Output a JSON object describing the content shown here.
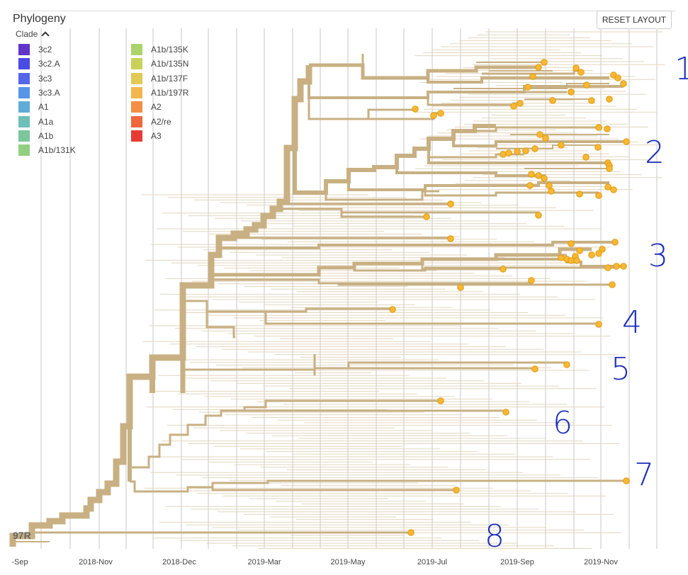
{
  "panel": {
    "title": "Phylogeny",
    "reset_label": "RESET LAYOUT"
  },
  "legend": {
    "toggle_label": "Clade",
    "items": [
      {
        "label": "3c2",
        "color": "#5a2ac8"
      },
      {
        "label": "3c2.A",
        "color": "#4141e3"
      },
      {
        "label": "3c3",
        "color": "#4a5ee8"
      },
      {
        "label": "3c3.A",
        "color": "#4f8fe6"
      },
      {
        "label": "A1",
        "color": "#57a9d4"
      },
      {
        "label": "A1a",
        "color": "#66bcb4"
      },
      {
        "label": "A1b",
        "color": "#77c497"
      },
      {
        "label": "A1b/131K",
        "color": "#8ccd7b"
      },
      {
        "label": "A1b/135K",
        "color": "#a6d264"
      },
      {
        "label": "A1b/135N",
        "color": "#c6d052"
      },
      {
        "label": "A1b/137F",
        "color": "#e0c84a"
      },
      {
        "label": "A1b/197R",
        "color": "#f2b443"
      },
      {
        "label": "A2",
        "color": "#f4893a"
      },
      {
        "label": "A2/re",
        "color": "#ef5f34"
      },
      {
        "label": "A3",
        "color": "#e4312c"
      }
    ]
  },
  "colors": {
    "branch": "#c8b083",
    "branch_faint": "#e3d6bf",
    "tip": "#f8b832",
    "tip_border": "#e09a10",
    "grid": "#e3e3e3"
  },
  "axis": {
    "ticks": [
      "-Sep",
      "2018-Nov",
      "2018-Dec",
      "2019-Mar",
      "2019-May",
      "2019-Jul",
      "2019-Sep",
      "2019-Nov"
    ]
  },
  "tree": {
    "root_label": "97R"
  },
  "annotations": [
    "1",
    "2",
    "3",
    "4",
    "5",
    "6",
    "7",
    "8"
  ]
}
